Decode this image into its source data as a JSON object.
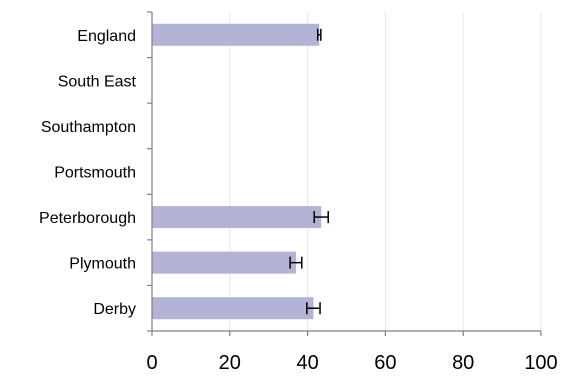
{
  "chart_data": {
    "type": "bar",
    "orientation": "horizontal",
    "categories": [
      "England",
      "South East",
      "Southampton",
      "Portsmouth",
      "Peterborough",
      "Plymouth",
      "Derby"
    ],
    "values": [
      43,
      null,
      null,
      null,
      43.5,
      37,
      41.5
    ],
    "error_bars": [
      [
        42.6,
        43.4
      ],
      null,
      null,
      null,
      [
        41.7,
        45.3
      ],
      [
        35.5,
        38.5
      ],
      [
        39.8,
        43.2
      ]
    ],
    "x_ticks": [
      "0",
      "20",
      "40",
      "60",
      "80",
      "100"
    ],
    "xlim": [
      0,
      100
    ],
    "grid": "vertical",
    "bar_color": "#b3b3d6",
    "title": "",
    "xlabel": "",
    "ylabel": ""
  }
}
